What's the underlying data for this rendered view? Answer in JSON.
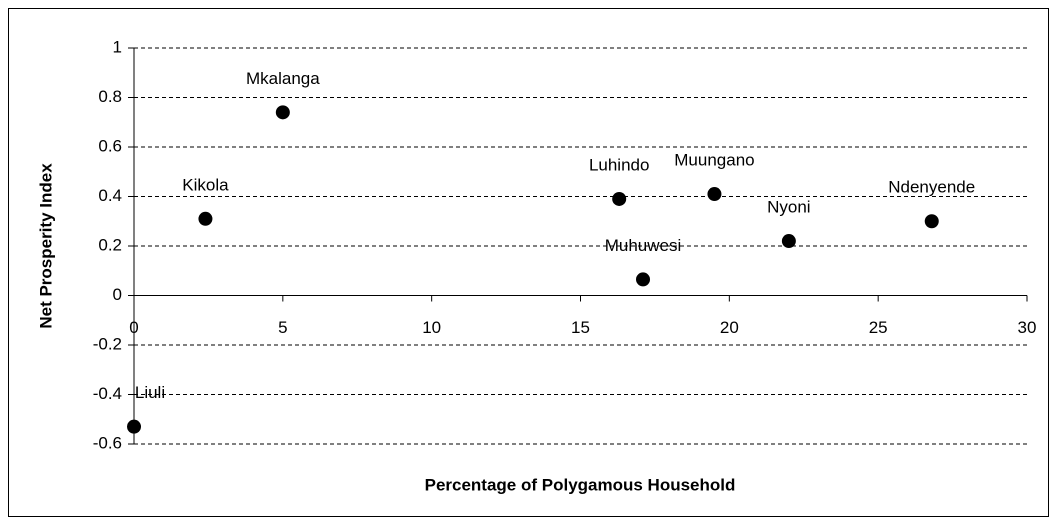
{
  "chart_data": {
    "type": "scatter",
    "xlabel": "Percentage of Polygamous Household",
    "ylabel": "Net Prosperity Index",
    "labels": [
      "Liuli",
      "Kikola",
      "Mkalanga",
      "Luhindo",
      "Muhuwesi",
      "Muungano",
      "Nyoni",
      "Ndenyende"
    ],
    "x": [
      0,
      2.4,
      5.0,
      16.3,
      17.1,
      19.5,
      22.0,
      26.8
    ],
    "values": [
      -0.53,
      0.31,
      0.74,
      0.39,
      0.065,
      0.41,
      0.22,
      0.3
    ],
    "color": "#000000",
    "xlim": [
      0,
      30
    ],
    "xticks": [
      0,
      5,
      10,
      15,
      20,
      25,
      30
    ],
    "ylim": [
      -0.6,
      1
    ],
    "yticks": [
      1,
      0.8,
      0.6,
      0.4,
      0.2,
      0,
      -0.2,
      -0.4,
      -0.6
    ],
    "grid": true
  }
}
